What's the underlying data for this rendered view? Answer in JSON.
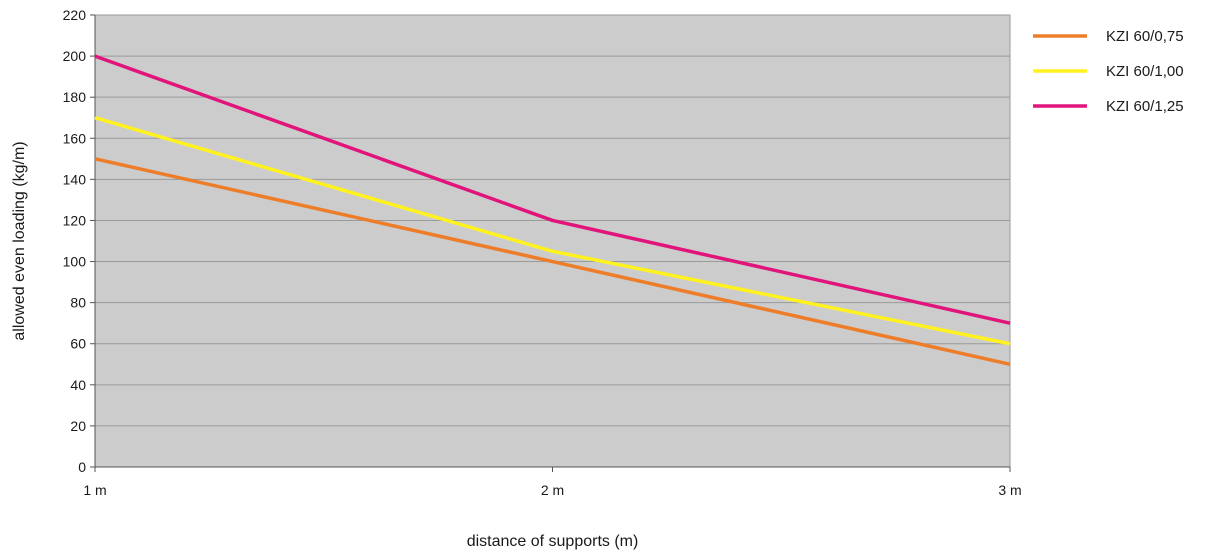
{
  "chart_data": {
    "type": "line",
    "title": "",
    "xlabel": "distance of supports (m)",
    "ylabel": "allowed even loading (kg/m)",
    "x": [
      1,
      2,
      3
    ],
    "x_tick_labels": [
      "1 m",
      "2 m",
      "3 m"
    ],
    "xlim": [
      1,
      3
    ],
    "ylim": [
      0,
      220
    ],
    "y_ticks": [
      0,
      20,
      40,
      60,
      80,
      100,
      120,
      140,
      160,
      180,
      200,
      220
    ],
    "grid": true,
    "legend_position": "right",
    "background_color": "#cccccc",
    "series": [
      {
        "name": "KZI 60/0,75",
        "color": "#ee7d2a",
        "values": [
          150,
          100,
          50
        ]
      },
      {
        "name": "KZI 60/1,00",
        "color": "#fff21f",
        "values": [
          170,
          105,
          60
        ]
      },
      {
        "name": "KZI 60/1,25",
        "color": "#e0147a",
        "values": [
          200,
          120,
          70
        ]
      }
    ]
  }
}
